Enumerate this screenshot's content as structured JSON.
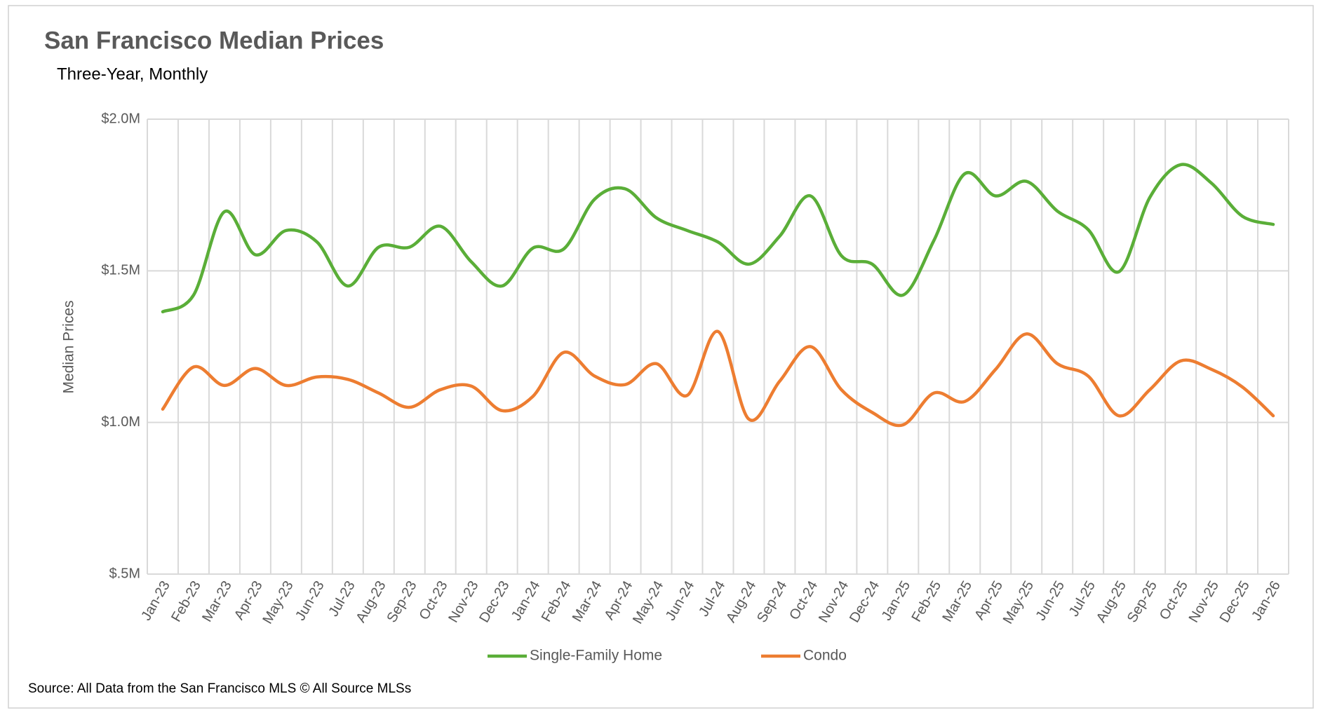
{
  "chart_data": {
    "type": "line",
    "title": "San Francisco Median Prices",
    "subtitle": "Three-Year, Monthly",
    "y_label": "Median Prices",
    "source": "Source: All Data from the San Francisco MLS © All Source MLSs",
    "categories": [
      "Jan-23",
      "Feb-23",
      "Mar-23",
      "Apr-23",
      "May-23",
      "Jun-23",
      "Jul-23",
      "Aug-23",
      "Sep-23",
      "Oct-23",
      "Nov-23",
      "Dec-23",
      "Jan-24",
      "Feb-24",
      "Mar-24",
      "Apr-24",
      "May-24",
      "Jun-24",
      "Jul-24",
      "Aug-24",
      "Sep-24",
      "Oct-24",
      "Nov-24",
      "Dec-24",
      "Jan-25",
      "Feb-25",
      "Mar-25",
      "Apr-25",
      "May-25",
      "Jun-25",
      "Jul-25",
      "Aug-25",
      "Sep-25",
      "Oct-25",
      "Nov-25",
      "Dec-25",
      "Jan-26"
    ],
    "series": [
      {
        "name": "Single-Family Home",
        "color": "#5aae38",
        "values": [
          1365000,
          1420000,
          1695000,
          1553000,
          1633000,
          1595000,
          1450000,
          1578000,
          1578000,
          1647000,
          1530000,
          1450000,
          1575000,
          1572000,
          1736000,
          1770000,
          1675000,
          1633000,
          1595000,
          1522000,
          1614000,
          1747000,
          1550000,
          1522000,
          1420000,
          1600000,
          1820000,
          1747000,
          1795000,
          1697000,
          1636000,
          1497000,
          1742000,
          1850000,
          1789000,
          1680000,
          1653000
        ]
      },
      {
        "name": "Condo",
        "color": "#ed7d31",
        "values": [
          1044000,
          1183000,
          1122000,
          1178000,
          1122000,
          1150000,
          1142000,
          1097000,
          1050000,
          1108000,
          1120000,
          1039000,
          1086000,
          1231000,
          1153000,
          1125000,
          1194000,
          1089000,
          1300000,
          1011000,
          1136000,
          1250000,
          1108000,
          1033000,
          992000,
          1097000,
          1069000,
          1175000,
          1292000,
          1194000,
          1153000,
          1022000,
          1108000,
          1203000,
          1175000,
          1117000,
          1022000
        ]
      }
    ],
    "ylim": [
      500000,
      2000000
    ],
    "yticks": [
      {
        "value": 500000,
        "label": "$.5M"
      },
      {
        "value": 1000000,
        "label": "$1.0M"
      },
      {
        "value": 1500000,
        "label": "$1.5M"
      },
      {
        "value": 2000000,
        "label": "$2.0M"
      }
    ],
    "grid": true,
    "legend": "bottom"
  }
}
